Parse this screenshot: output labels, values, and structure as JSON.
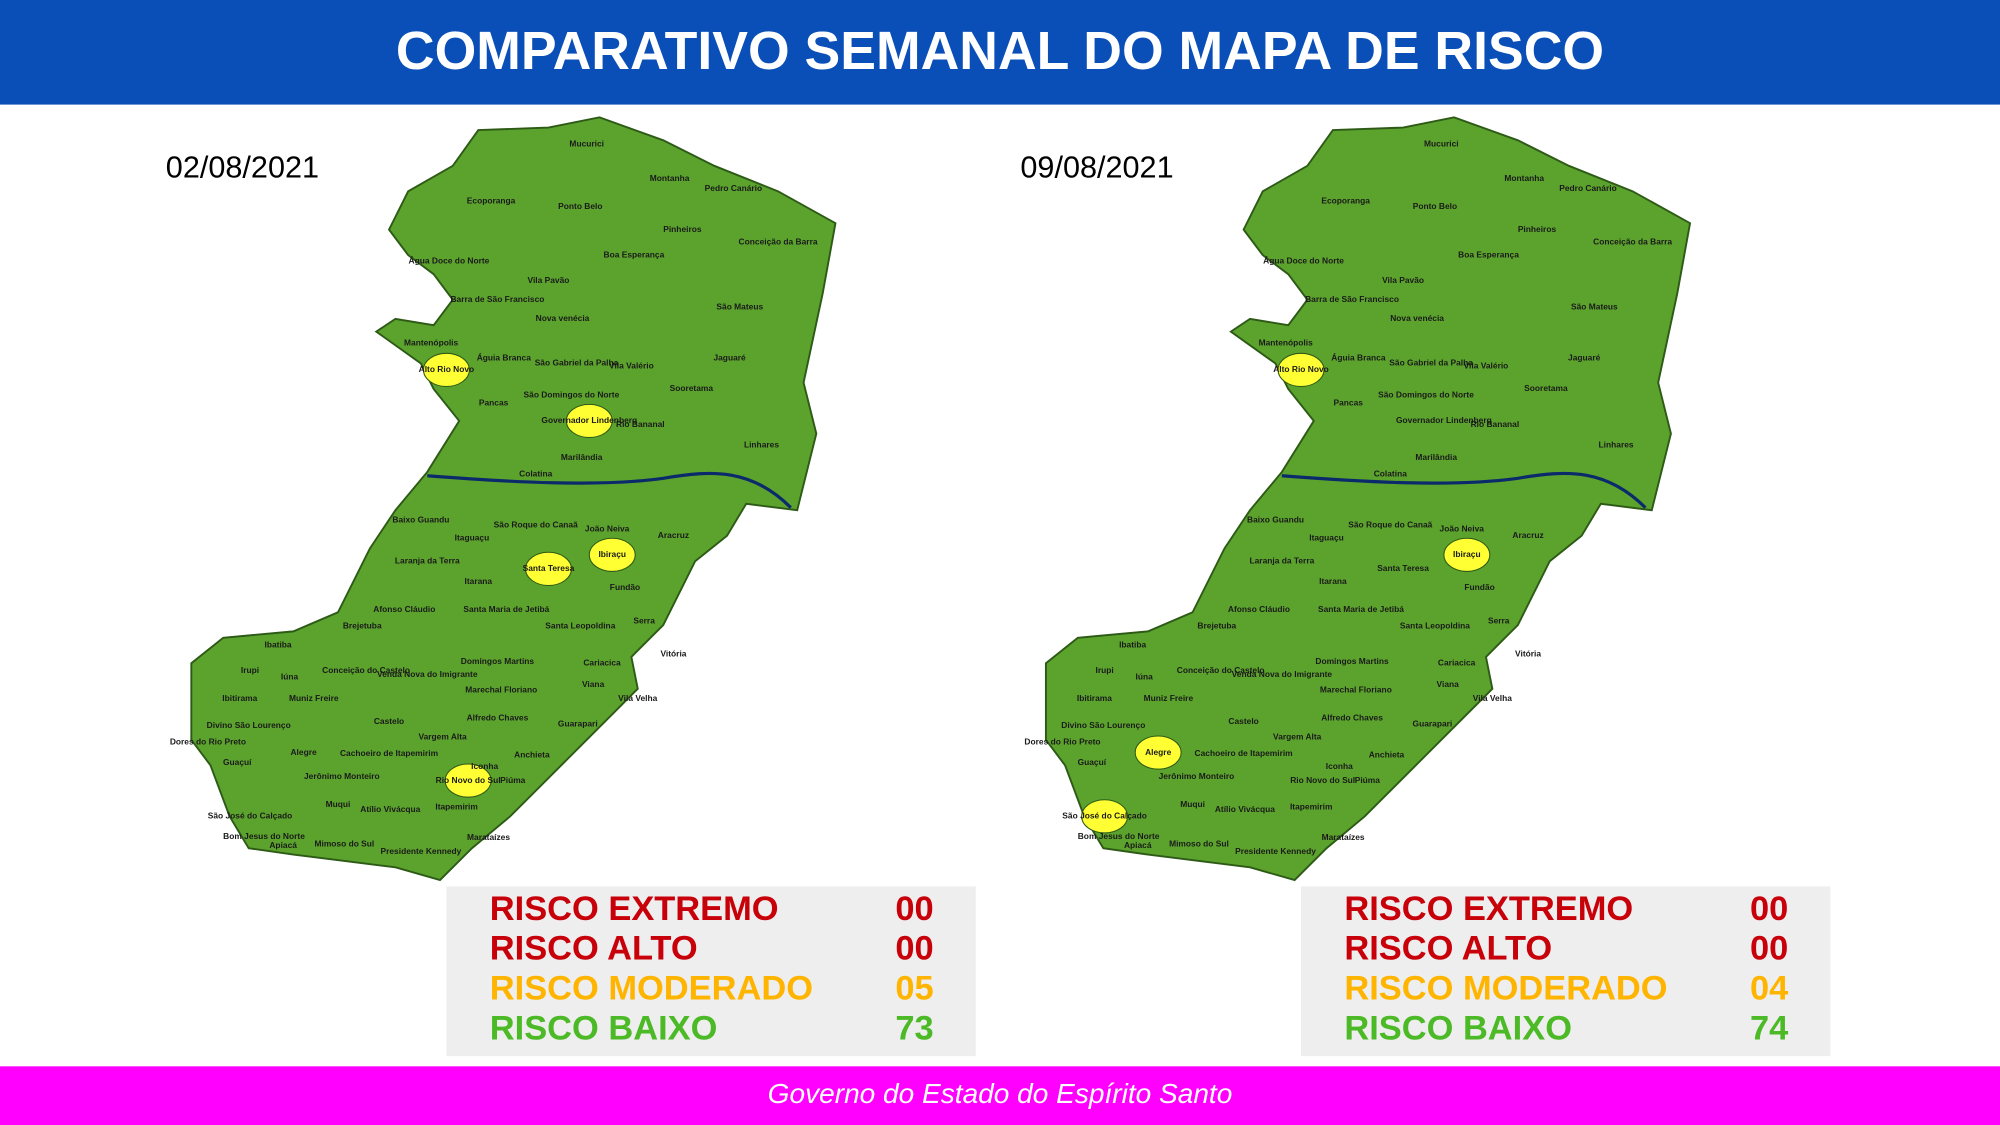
{
  "header": {
    "title": "COMPARATIVO SEMANAL DO MAPA DE RISCO",
    "color": "#0a4fb8"
  },
  "footer": {
    "text": "Governo do Estado do Espírito Santo",
    "color": "#ff00ff"
  },
  "map_fill": "#5ca32d",
  "highlight_color": "#ffff33",
  "maps": [
    {
      "date": "02/08/2021",
      "highlighted": [
        "Alto Rio Novo",
        "Governador Lindenberg",
        "Santa Teresa",
        "Ibiraçu",
        "Rio Novo do Sul"
      ],
      "municipalities": [
        "Mucurici",
        "Montanha",
        "Pedro Canário",
        "Ecoporanga",
        "Ponto Belo",
        "Pinheiros",
        "Conceição da Barra",
        "Boa Esperança",
        "Água Doce do Norte",
        "Vila Pavão",
        "Barra de São Francisco",
        "São Mateus",
        "Nova venécia",
        "Mantenópolis",
        "Águia Branca",
        "São Gabriel da Palha",
        "Vila Valério",
        "Jaguaré",
        "Alto Rio Novo",
        "São Domingos do Norte",
        "Sooretama",
        "Pancas",
        "Governador Lindenberg",
        "Rio Bananal",
        "Linhares",
        "Marilândia",
        "Colatina",
        "Baixo Guandu",
        "Itaguaçu",
        "São Roque do Canaã",
        "João Neiva",
        "Aracruz",
        "Laranja da Terra",
        "Santa Teresa",
        "Ibiraçu",
        "Itarana",
        "Fundão",
        "Afonso Cláudio",
        "Santa Maria de Jetibá",
        "Serra",
        "Santa Leopoldina",
        "Brejetuba",
        "Ibatiba",
        "Vitória",
        "Domingos Martins",
        "Irupi",
        "Iúna",
        "Conceição do Castelo",
        "Venda Nova do Imigrante",
        "Cariacica",
        "Viana",
        "Marechal Floriano",
        "Ibitirama",
        "Muniz Freire",
        "Vila Velha",
        "Divino São Lourenço",
        "Castelo",
        "Alfredo Chaves",
        "Guarapari",
        "Dores do Rio Preto",
        "Vargem Alta",
        "Alegre",
        "Cachoeiro de Itapemirim",
        "Anchieta",
        "Guaçuí",
        "Iconha",
        "Jerônimo Monteiro",
        "Piúma",
        "Rio Novo do Sul",
        "Muqui",
        "Atílio Vivácqua",
        "Itapemirim",
        "São José do Calçado",
        "Bom Jesus do Norte",
        "Apiacá",
        "Mimoso do Sul",
        "Marataízes",
        "Presidente Kennedy"
      ],
      "legend": [
        {
          "label": "RISCO EXTREMO",
          "count": "00",
          "color": "#c8000a"
        },
        {
          "label": "RISCO ALTO",
          "count": "00",
          "color": "#c8000a"
        },
        {
          "label": "RISCO MODERADO",
          "count": "05",
          "color": "#ffb400"
        },
        {
          "label": "RISCO BAIXO",
          "count": "73",
          "color": "#4cba26"
        }
      ]
    },
    {
      "date": "09/08/2021",
      "highlighted": [
        "Alto Rio Novo",
        "Ibiraçu",
        "Alegre",
        "São José do Calçado"
      ],
      "municipalities": [
        "Mucurici",
        "Montanha",
        "Pedro Canário",
        "Ecoporanga",
        "Ponto Belo",
        "Pinheiros",
        "Conceição da Barra",
        "Boa Esperança",
        "Água Doce do Norte",
        "Vila Pavão",
        "Barra de São Francisco",
        "São Mateus",
        "Nova venécia",
        "Mantenópolis",
        "Águia Branca",
        "São Gabriel da Palha",
        "Vila Valério",
        "Jaguaré",
        "Alto Rio Novo",
        "São Domingos do Norte",
        "Sooretama",
        "Pancas",
        "Governador Lindenberg",
        "Rio Bananal",
        "Linhares",
        "Marilândia",
        "Colatina",
        "Baixo Guandu",
        "Itaguaçu",
        "São Roque do Canaã",
        "João Neiva",
        "Aracruz",
        "Laranja da Terra",
        "Santa Teresa",
        "Ibiraçu",
        "Itarana",
        "Fundão",
        "Afonso Cláudio",
        "Santa Maria de Jetibá",
        "Serra",
        "Santa Leopoldina",
        "Brejetuba",
        "Ibatiba",
        "Vitória",
        "Domingos Martins",
        "Irupi",
        "Iúna",
        "Conceição do Castelo",
        "Venda Nova do Imigrante",
        "Cariacica",
        "Viana",
        "Marechal Floriano",
        "Ibitirama",
        "Muniz Freire",
        "Vila Velha",
        "Divino São Lourenço",
        "Castelo",
        "Alfredo Chaves",
        "Guarapari",
        "Dores do Rio Preto",
        "Vargem Alta",
        "Alegre",
        "Cachoeiro de Itapemirim",
        "Anchieta",
        "Guaçuí",
        "Iconha",
        "Jerônimo Monteiro",
        "Piúma",
        "Rio Novo do Sul",
        "Muqui",
        "Atílio Vivácqua",
        "Itapemirim",
        "São José do Calçado",
        "Bom Jesus do Norte",
        "Apiacá",
        "Mimoso do Sul",
        "Marataízes",
        "Presidente Kennedy"
      ],
      "legend": [
        {
          "label": "RISCO EXTREMO",
          "count": "00",
          "color": "#c8000a"
        },
        {
          "label": "RISCO ALTO",
          "count": "00",
          "color": "#c8000a"
        },
        {
          "label": "RISCO MODERADO",
          "count": "04",
          "color": "#ffb400"
        },
        {
          "label": "RISCO BAIXO",
          "count": "74",
          "color": "#4cba26"
        }
      ]
    }
  ]
}
